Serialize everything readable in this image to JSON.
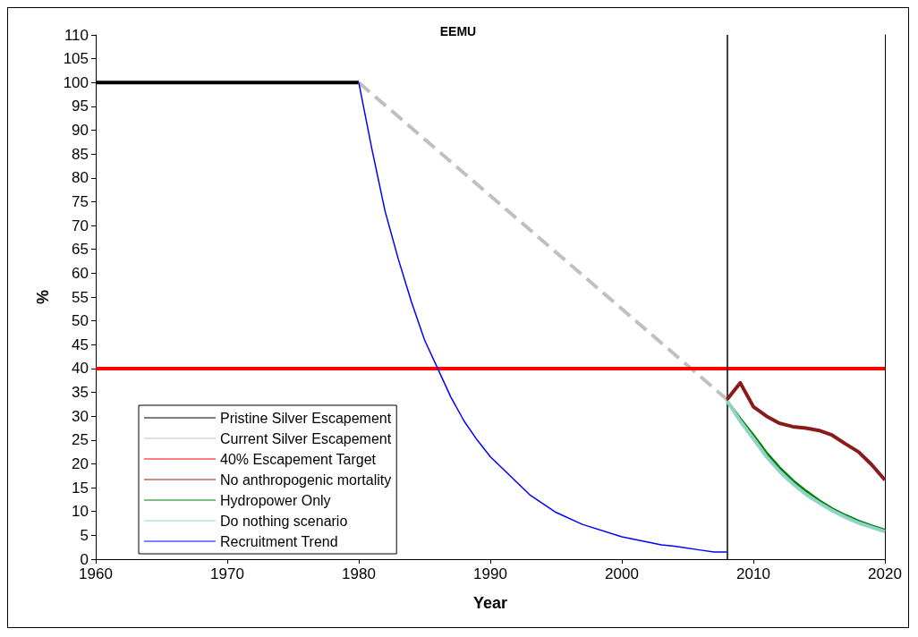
{
  "chart_data": {
    "type": "line",
    "title": "EEMU",
    "xlabel": "Year",
    "ylabel": "%",
    "xlim": [
      1960,
      2020
    ],
    "xticks": [
      1960,
      1970,
      1980,
      1990,
      2000,
      2010,
      2020
    ],
    "ylim": [
      0,
      110
    ],
    "yticks": [
      0,
      5,
      10,
      15,
      20,
      25,
      30,
      35,
      40,
      45,
      50,
      55,
      60,
      65,
      70,
      75,
      80,
      85,
      90,
      95,
      100,
      105,
      110
    ],
    "grid": false,
    "legend": "bottom left",
    "marker": "none",
    "ref_lines": [
      {
        "axis": "x",
        "value": 2008,
        "label": null,
        "color": "#000000"
      }
    ],
    "series": [
      {
        "name": "Pristine Silver Escapement",
        "color": "#000000",
        "x": [
          1960,
          1980
        ],
        "values": [
          100,
          100
        ]
      },
      {
        "name": "Current Silver Escapement",
        "color": "#c0c0c0",
        "line_style": "dashed",
        "x": [
          1980,
          2008
        ],
        "values": [
          100,
          33.5
        ]
      },
      {
        "name": "40% Escapement Target",
        "color": "#ff0000",
        "x": [
          1960,
          2020
        ],
        "values": [
          40,
          40
        ]
      },
      {
        "name": "No anthropogenic mortality",
        "color": "#8b1a1a",
        "x": [
          2008,
          2009,
          2010,
          2011,
          2012,
          2013,
          2014,
          2015,
          2016,
          2017,
          2018,
          2019,
          2020
        ],
        "values": [
          33.5,
          37,
          32,
          30,
          28.5,
          27.8,
          27.5,
          27,
          26,
          24.2,
          22.5,
          19.8,
          16.6
        ]
      },
      {
        "name": "Hydropower Only",
        "color": "#008000",
        "x": [
          2008,
          2009,
          2010,
          2011,
          2012,
          2013,
          2014,
          2015,
          2016,
          2017,
          2018,
          2019,
          2020
        ],
        "values": [
          33.2,
          29.5,
          26,
          22.3,
          19.2,
          16.5,
          14.3,
          12.3,
          10.6,
          9.2,
          8,
          7,
          6.1
        ]
      },
      {
        "name": "Do nothing scenario",
        "color": "#8fd3c8",
        "x": [
          2008,
          2009,
          2010,
          2011,
          2012,
          2013,
          2014,
          2015,
          2016,
          2017,
          2018,
          2019,
          2020
        ],
        "values": [
          33.2,
          29,
          25.3,
          21.5,
          18.4,
          15.8,
          13.6,
          11.8,
          10.2,
          8.8,
          7.6,
          6.7,
          5.8
        ]
      },
      {
        "name": "Recruitment Trend",
        "color": "#0000ff",
        "x": [
          1980,
          1981,
          1982,
          1983,
          1984,
          1985,
          1986,
          1987,
          1988,
          1989,
          1990,
          1993,
          1995,
          1997,
          2000,
          2003,
          2004,
          2006,
          2007,
          2008
        ],
        "values": [
          100,
          86,
          73,
          63,
          54,
          46,
          40,
          34,
          29,
          25,
          21.5,
          13.5,
          9.8,
          7.3,
          4.7,
          3,
          2.7,
          1.9,
          1.5,
          1.5
        ]
      }
    ]
  }
}
